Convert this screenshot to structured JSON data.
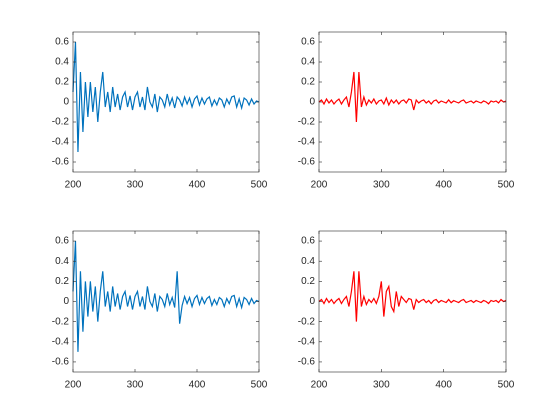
{
  "chart_data": [
    {
      "type": "line",
      "x": [
        200,
        204,
        208,
        212,
        216,
        220,
        224,
        228,
        232,
        236,
        240,
        244,
        248,
        252,
        256,
        260,
        264,
        268,
        272,
        276,
        280,
        284,
        288,
        292,
        296,
        300,
        304,
        308,
        312,
        316,
        320,
        324,
        328,
        332,
        336,
        340,
        344,
        348,
        352,
        356,
        360,
        364,
        368,
        372,
        376,
        380,
        384,
        388,
        392,
        396,
        400,
        404,
        408,
        412,
        416,
        420,
        424,
        428,
        432,
        436,
        440,
        444,
        448,
        452,
        456,
        460,
        464,
        468,
        472,
        476,
        480,
        484,
        488,
        492,
        496,
        500
      ],
      "series": [
        {
          "color": "#0072bd",
          "values": [
            0.1,
            0.6,
            -0.5,
            0.3,
            -0.3,
            0.2,
            -0.15,
            0.2,
            -0.1,
            0.15,
            -0.2,
            0.1,
            0.3,
            -0.05,
            0.1,
            -0.1,
            0.15,
            -0.05,
            0.08,
            -0.08,
            0.05,
            0.1,
            -0.05,
            0.06,
            -0.08,
            0.05,
            0.1,
            -0.05,
            0.05,
            -0.08,
            0.15,
            0,
            -0.05,
            0.08,
            -0.1,
            0.05,
            0.02,
            -0.05,
            0.08,
            -0.03,
            0.04,
            -0.06,
            0.05,
            0.02,
            -0.04,
            0.05,
            -0.02,
            0.04,
            -0.05,
            0.03,
            0.06,
            -0.03,
            0.04,
            -0.02,
            0.03,
            0.05,
            -0.04,
            0.02,
            -0.03,
            0.04,
            0.02,
            -0.05,
            0.03,
            -0.02,
            0.05,
            0.06,
            -0.05,
            0.03,
            -0.06,
            0.04,
            0.02,
            -0.03,
            0.03,
            -0.02,
            0.01,
            0
          ]
        }
      ],
      "xlim": [
        200,
        500
      ],
      "xticks": [
        200,
        300,
        400,
        500
      ],
      "ylim": [
        -0.7,
        0.7
      ],
      "yticks": [
        -0.6,
        -0.4,
        -0.2,
        0,
        0.2,
        0.4,
        0.6
      ]
    },
    {
      "type": "line",
      "x": [
        200,
        204,
        208,
        212,
        216,
        220,
        224,
        228,
        232,
        236,
        240,
        244,
        248,
        252,
        256,
        260,
        264,
        268,
        272,
        276,
        280,
        284,
        288,
        292,
        296,
        300,
        304,
        308,
        312,
        316,
        320,
        324,
        328,
        332,
        336,
        340,
        344,
        348,
        352,
        356,
        360,
        364,
        368,
        372,
        376,
        380,
        384,
        388,
        392,
        396,
        400,
        404,
        408,
        412,
        416,
        420,
        424,
        428,
        432,
        436,
        440,
        444,
        448,
        452,
        456,
        460,
        464,
        468,
        472,
        476,
        480,
        484,
        488,
        492,
        496,
        500
      ],
      "series": [
        {
          "color": "#ff0000",
          "values": [
            0,
            0.02,
            -0.02,
            0.03,
            -0.01,
            0.02,
            -0.02,
            0.01,
            0.03,
            -0.02,
            0.02,
            0.05,
            -0.05,
            0.1,
            0.3,
            -0.2,
            0.3,
            -0.05,
            0.05,
            -0.03,
            0.02,
            -0.01,
            0.03,
            -0.02,
            0.01,
            0.02,
            -0.02,
            0.04,
            -0.03,
            0.02,
            -0.01,
            0.02,
            -0.02,
            0.01,
            0.02,
            -0.01,
            0.03,
            0.02,
            -0.08,
            0.02,
            -0.01,
            0.01,
            0.02,
            -0.01,
            0.01,
            -0.02,
            0.01,
            0.02,
            -0.01,
            0.01,
            0,
            -0.01,
            0.02,
            -0.01,
            0.01,
            0,
            -0.01,
            0.01,
            0.02,
            -0.01,
            0,
            0.01,
            -0.01,
            0.01,
            0,
            -0.01,
            0.01,
            0,
            -0.02,
            0.01,
            0,
            0.01,
            -0.01,
            0.02,
            0,
            0.01
          ]
        }
      ],
      "xlim": [
        200,
        500
      ],
      "xticks": [
        200,
        300,
        400,
        500
      ],
      "ylim": [
        -0.7,
        0.7
      ],
      "yticks": [
        -0.6,
        -0.4,
        -0.2,
        0,
        0.2,
        0.4,
        0.6
      ]
    },
    {
      "type": "line",
      "x": [
        200,
        204,
        208,
        212,
        216,
        220,
        224,
        228,
        232,
        236,
        240,
        244,
        248,
        252,
        256,
        260,
        264,
        268,
        272,
        276,
        280,
        284,
        288,
        292,
        296,
        300,
        304,
        308,
        312,
        316,
        320,
        324,
        328,
        332,
        336,
        340,
        344,
        348,
        352,
        356,
        360,
        364,
        368,
        372,
        376,
        380,
        384,
        388,
        392,
        396,
        400,
        404,
        408,
        412,
        416,
        420,
        424,
        428,
        432,
        436,
        440,
        444,
        448,
        452,
        456,
        460,
        464,
        468,
        472,
        476,
        480,
        484,
        488,
        492,
        496,
        500
      ],
      "series": [
        {
          "color": "#0072bd",
          "values": [
            0.1,
            0.6,
            -0.5,
            0.3,
            -0.3,
            0.2,
            -0.15,
            0.2,
            -0.1,
            0.15,
            -0.2,
            0.1,
            0.3,
            -0.05,
            0.1,
            -0.1,
            0.15,
            -0.05,
            0.08,
            -0.08,
            0.05,
            0.1,
            -0.05,
            0.06,
            -0.08,
            0.05,
            0.1,
            -0.05,
            0.05,
            -0.08,
            0.15,
            0,
            -0.05,
            0.08,
            -0.1,
            0.05,
            0.02,
            -0.05,
            0.08,
            -0.03,
            0.04,
            -0.06,
            0.3,
            -0.22,
            -0.04,
            0.05,
            -0.02,
            0.04,
            -0.05,
            0.03,
            0.06,
            -0.03,
            0.04,
            -0.02,
            0.03,
            0.05,
            -0.04,
            0.02,
            -0.03,
            0.04,
            0.02,
            -0.05,
            0.03,
            -0.02,
            0.05,
            0.06,
            -0.05,
            0.03,
            -0.06,
            0.04,
            0.02,
            -0.03,
            0.03,
            -0.02,
            0.01,
            0
          ]
        }
      ],
      "xlim": [
        200,
        500
      ],
      "xticks": [
        200,
        300,
        400,
        500
      ],
      "ylim": [
        -0.7,
        0.7
      ],
      "yticks": [
        -0.6,
        -0.4,
        -0.2,
        0,
        0.2,
        0.4,
        0.6
      ]
    },
    {
      "type": "line",
      "x": [
        200,
        204,
        208,
        212,
        216,
        220,
        224,
        228,
        232,
        236,
        240,
        244,
        248,
        252,
        256,
        260,
        264,
        268,
        272,
        276,
        280,
        284,
        288,
        292,
        296,
        300,
        304,
        308,
        312,
        316,
        320,
        324,
        328,
        332,
        336,
        340,
        344,
        348,
        352,
        356,
        360,
        364,
        368,
        372,
        376,
        380,
        384,
        388,
        392,
        396,
        400,
        404,
        408,
        412,
        416,
        420,
        424,
        428,
        432,
        436,
        440,
        444,
        448,
        452,
        456,
        460,
        464,
        468,
        472,
        476,
        480,
        484,
        488,
        492,
        496,
        500
      ],
      "series": [
        {
          "color": "#ff0000",
          "values": [
            0,
            0.02,
            -0.02,
            0.03,
            -0.01,
            0.02,
            -0.02,
            0.01,
            0.03,
            -0.02,
            0.02,
            0.05,
            -0.05,
            0.1,
            0.3,
            -0.2,
            0.3,
            -0.05,
            0.05,
            -0.03,
            0.02,
            -0.01,
            0.03,
            -0.02,
            0.05,
            0.2,
            -0.15,
            0.1,
            0.15,
            -0.05,
            -0.1,
            0.1,
            -0.05,
            0.05,
            0.02,
            -0.01,
            0.03,
            0.02,
            -0.08,
            0.02,
            -0.01,
            0.01,
            0.02,
            -0.01,
            0.01,
            -0.02,
            0.01,
            0.02,
            -0.01,
            0.01,
            0,
            -0.01,
            0.02,
            -0.01,
            0.01,
            0,
            -0.01,
            0.01,
            0.02,
            -0.01,
            0,
            0.01,
            -0.01,
            0.01,
            0,
            -0.01,
            0.01,
            0,
            -0.02,
            0.01,
            0,
            0.01,
            -0.01,
            0.02,
            0,
            0.01
          ]
        }
      ],
      "xlim": [
        200,
        500
      ],
      "xticks": [
        200,
        300,
        400,
        500
      ],
      "ylim": [
        -0.7,
        0.7
      ],
      "yticks": [
        -0.6,
        -0.4,
        -0.2,
        0,
        0.2,
        0.4,
        0.6
      ]
    }
  ]
}
